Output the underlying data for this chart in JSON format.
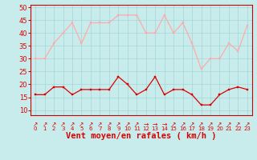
{
  "hours": [
    0,
    1,
    2,
    3,
    4,
    5,
    6,
    7,
    8,
    9,
    10,
    11,
    12,
    13,
    14,
    15,
    16,
    17,
    18,
    19,
    20,
    21,
    22,
    23
  ],
  "wind_avg": [
    16,
    16,
    19,
    19,
    16,
    18,
    18,
    18,
    18,
    23,
    20,
    16,
    18,
    23,
    16,
    18,
    18,
    16,
    12,
    12,
    16,
    18,
    19,
    18
  ],
  "wind_gust": [
    30,
    30,
    36,
    40,
    44,
    36,
    44,
    44,
    44,
    47,
    47,
    47,
    40,
    40,
    47,
    40,
    44,
    36,
    26,
    30,
    30,
    36,
    33,
    43
  ],
  "avg_color": "#dd0000",
  "gust_color": "#ffaaaa",
  "bg_color": "#c8ecec",
  "grid_color": "#aad8d8",
  "spine_color": "#cc0000",
  "xlabel": "Vent moyen/en rafales ( km/h )",
  "ylim_min": 8,
  "ylim_max": 51,
  "yticks": [
    10,
    15,
    20,
    25,
    30,
    35,
    40,
    45,
    50
  ],
  "arrow_chars": [
    "↗",
    "↗",
    "↗",
    "↗",
    "↗",
    "↗",
    "↗",
    "↗",
    "↗",
    "↗",
    "↗",
    "↗",
    "→",
    "→",
    "→",
    "↗",
    "↗",
    "↗",
    "↗",
    "↗",
    "↗",
    "↗",
    "↗",
    "↗"
  ]
}
